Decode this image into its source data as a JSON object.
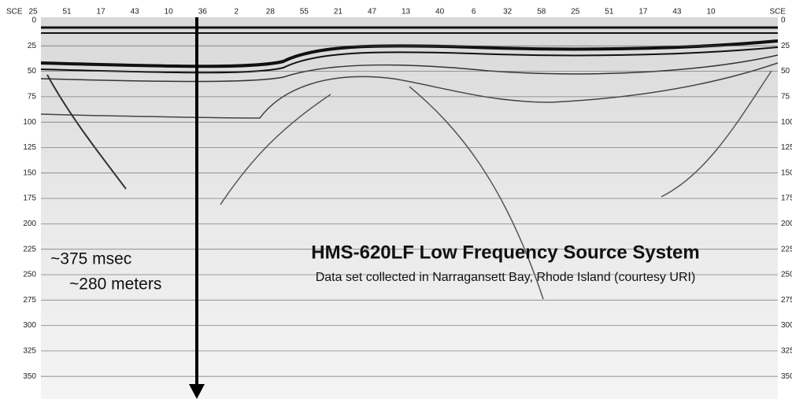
{
  "axis_labels": {
    "left": "SCE",
    "right": "SCE"
  },
  "top_labels": [
    "25",
    "51",
    "17",
    "43",
    "10",
    "36",
    "2",
    "28",
    "55",
    "21",
    "47",
    "13",
    "40",
    "6",
    "32",
    "58",
    "25",
    "51",
    "17",
    "43",
    "10"
  ],
  "depth_labels": [
    "0",
    "25",
    "50",
    "75",
    "100",
    "125",
    "150",
    "175",
    "200",
    "225",
    "250",
    "275",
    "300",
    "325",
    "350"
  ],
  "title": "HMS-620LF Low Frequency Source System",
  "subtitle": "Data set collected in Narragansett Bay, Rhode Island (courtesy URI)",
  "annotations": [
    "~375 msec",
    "~280 meters"
  ]
}
